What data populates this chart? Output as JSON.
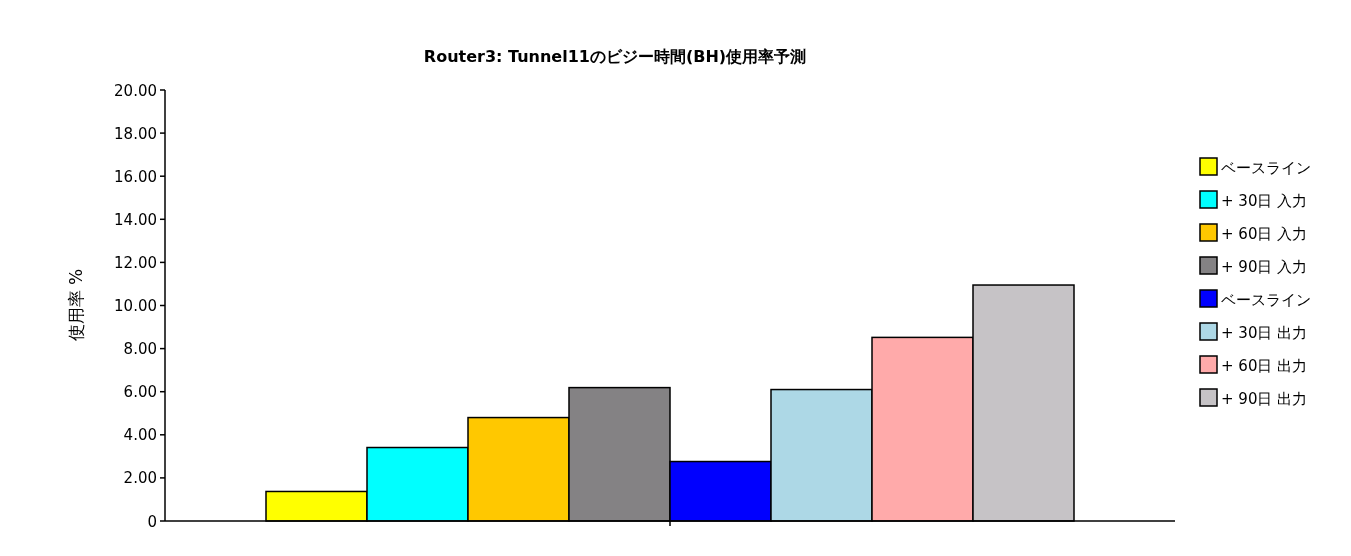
{
  "chart_data": {
    "type": "bar",
    "title": "Router3: Tunnel11のビジー時間(BH)使用率予測",
    "ylabel": "使用率 %",
    "categories": [
      null
    ],
    "series": [
      {
        "name": "ベースライン",
        "color": "#ffff00",
        "values": [
          1.37
        ]
      },
      {
        "name": "+ 30日 入力",
        "color": "#00ffff",
        "values": [
          3.41
        ]
      },
      {
        "name": "+ 60日 入力",
        "color": "#ffc800",
        "values": [
          4.8
        ]
      },
      {
        "name": "+ 90日 入力",
        "color": "#848284",
        "values": [
          6.19
        ]
      },
      {
        "name": "ベースライン",
        "color": "#0000ff",
        "values": [
          2.76
        ]
      },
      {
        "name": "+ 30日 出力",
        "color": "#add8e6",
        "values": [
          6.1
        ]
      },
      {
        "name": "+ 60日 出力",
        "color": "#ffaaaa",
        "values": [
          8.52
        ]
      },
      {
        "name": "+ 90日 出力",
        "color": "#c6c3c6",
        "values": [
          10.95
        ]
      }
    ],
    "ylim": [
      0,
      20
    ],
    "yticks": [
      0,
      {
        "value": 2,
        "label": "2.00"
      },
      {
        "value": 4,
        "label": "4.00"
      },
      {
        "value": 6,
        "label": "6.00"
      },
      {
        "value": 8,
        "label": "8.00"
      },
      {
        "value": 10,
        "label": "10.00"
      },
      {
        "value": 12,
        "label": "12.00"
      },
      {
        "value": 14,
        "label": "14.00"
      },
      {
        "value": 16,
        "label": "16.00"
      },
      {
        "value": 18,
        "label": "18.00"
      },
      {
        "value": 20,
        "label": "20.00"
      }
    ],
    "legend": "right"
  }
}
